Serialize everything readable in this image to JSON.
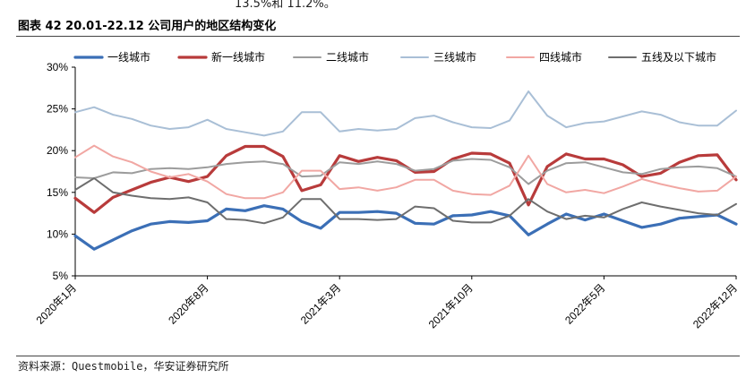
{
  "header": {
    "top_cut_text": "13.5%和 11.2%。",
    "figure_title": "图表 42 20.01-22.12 公司用户的地区结构变化"
  },
  "footer": {
    "source": "资料来源：Questmobile，华安证券研究所"
  },
  "chart_data": {
    "type": "line",
    "ylim": [
      5,
      30
    ],
    "yticks": [
      5,
      10,
      15,
      20,
      25,
      30
    ],
    "ytick_labels": [
      "5%",
      "10%",
      "15%",
      "20%",
      "25%",
      "30%"
    ],
    "xtick_positions": [
      0,
      7,
      14,
      21,
      28,
      35
    ],
    "xtick_labels": [
      "2020年1月",
      "2020年8月",
      "2021年3月",
      "2021年10月",
      "2022年5月",
      "2022年12月"
    ],
    "grid": false,
    "legend": "top",
    "series": [
      {
        "name": "一线城市",
        "color": "#3b6fb6",
        "width": 3.2,
        "values": [
          9.8,
          8.2,
          9.3,
          10.4,
          11.2,
          11.5,
          11.4,
          11.6,
          13.0,
          12.8,
          13.4,
          13.0,
          11.5,
          10.7,
          12.6,
          12.6,
          12.7,
          12.5,
          11.3,
          11.2,
          12.2,
          12.3,
          12.7,
          12.2,
          9.9,
          11.2,
          12.4,
          11.7,
          12.4,
          11.6,
          10.8,
          11.2,
          11.9,
          12.1,
          12.3,
          11.2
        ]
      },
      {
        "name": "新一线城市",
        "color": "#b83b3b",
        "width": 3.2,
        "values": [
          14.3,
          12.6,
          14.4,
          15.3,
          16.2,
          16.8,
          16.3,
          16.9,
          19.4,
          20.5,
          20.5,
          19.3,
          15.2,
          15.9,
          19.4,
          18.7,
          19.2,
          18.8,
          17.4,
          17.5,
          19.0,
          19.7,
          19.6,
          18.5,
          13.5,
          18.1,
          19.6,
          19.0,
          19.0,
          18.3,
          16.9,
          17.3,
          18.6,
          19.4,
          19.5,
          16.5
        ]
      },
      {
        "name": "二线城市",
        "color": "#9c9c9c",
        "width": 2,
        "values": [
          16.8,
          16.7,
          17.4,
          17.3,
          17.8,
          17.9,
          17.8,
          18.0,
          18.4,
          18.6,
          18.7,
          18.4,
          16.9,
          17.0,
          18.6,
          18.4,
          18.7,
          18.4,
          17.6,
          17.8,
          18.8,
          19.0,
          18.9,
          18.0,
          16.0,
          17.6,
          18.5,
          18.6,
          18.0,
          17.4,
          17.2,
          17.8,
          18.0,
          18.1,
          17.9,
          16.9
        ]
      },
      {
        "name": "三线城市",
        "color": "#a9bfd6",
        "width": 2,
        "values": [
          24.6,
          25.2,
          24.3,
          23.8,
          23.0,
          22.6,
          22.8,
          23.7,
          22.6,
          22.2,
          21.8,
          22.3,
          24.6,
          24.6,
          22.3,
          22.6,
          22.4,
          22.6,
          23.9,
          24.2,
          23.4,
          22.8,
          22.7,
          23.6,
          27.1,
          24.2,
          22.8,
          23.3,
          23.5,
          24.1,
          24.7,
          24.3,
          23.4,
          23.0,
          23.0,
          24.8
        ]
      },
      {
        "name": "四线城市",
        "color": "#f1a7a3",
        "width": 2,
        "values": [
          19.2,
          20.6,
          19.3,
          18.6,
          17.5,
          16.8,
          17.2,
          16.3,
          14.8,
          14.3,
          14.3,
          15.0,
          17.6,
          17.6,
          15.4,
          15.6,
          15.2,
          15.6,
          16.5,
          16.5,
          15.2,
          14.8,
          14.7,
          15.8,
          19.4,
          16.0,
          15.0,
          15.3,
          14.9,
          15.7,
          16.6,
          16.0,
          15.5,
          15.1,
          15.2,
          16.9
        ]
      },
      {
        "name": "五线及以下城市",
        "color": "#6e6e6e",
        "width": 2,
        "values": [
          15.3,
          16.7,
          15.0,
          14.6,
          14.3,
          14.2,
          14.4,
          13.8,
          11.8,
          11.7,
          11.3,
          12.0,
          14.2,
          14.2,
          11.8,
          11.8,
          11.7,
          11.8,
          13.3,
          13.1,
          11.6,
          11.4,
          11.4,
          12.2,
          14.2,
          12.7,
          11.8,
          12.2,
          12.0,
          13.0,
          13.8,
          13.3,
          12.9,
          12.5,
          12.3,
          13.6
        ]
      }
    ]
  }
}
